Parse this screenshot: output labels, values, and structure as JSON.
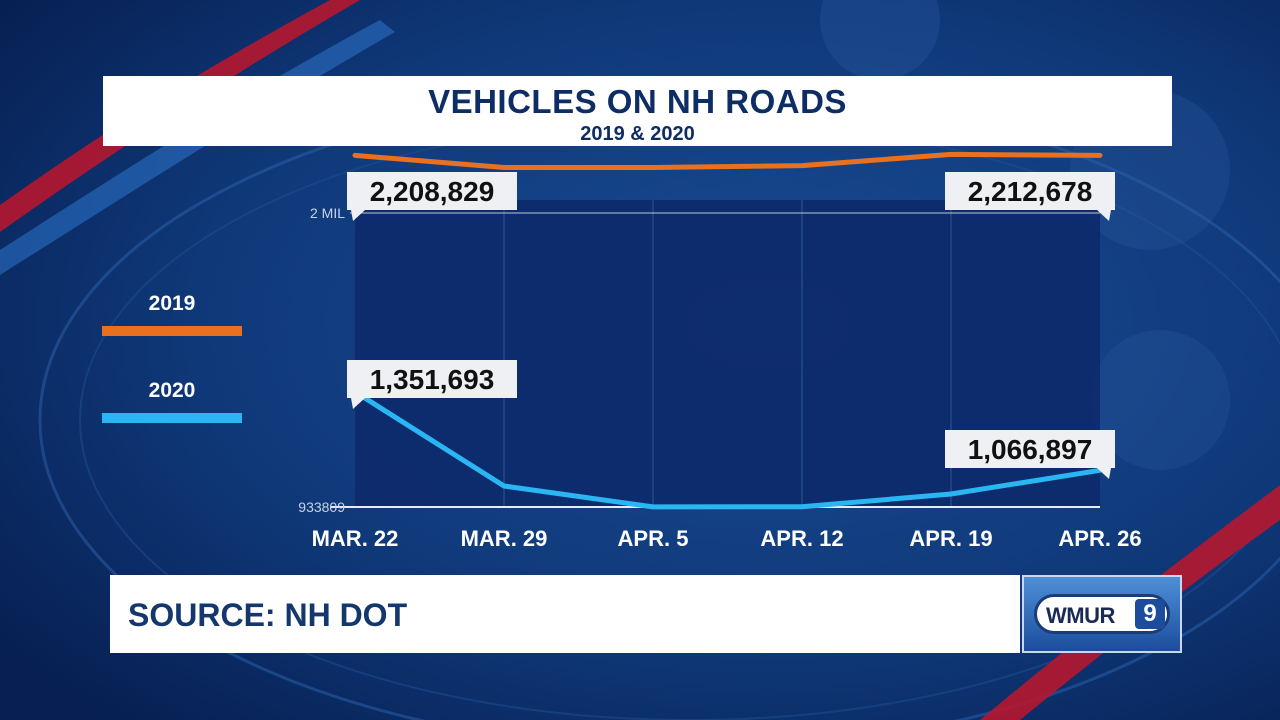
{
  "header": {
    "title": "VEHICLES ON NH ROADS",
    "subtitle": "2019 & 2020"
  },
  "footer": {
    "source": "SOURCE: NH DOT"
  },
  "logo": {
    "text": "WMUR",
    "numeral": "9"
  },
  "colors": {
    "series_2019": "#e8701e",
    "series_2020": "#29b6f2",
    "background": "#0a2f6e",
    "plot_area": "#0d2a6b",
    "title_text": "#0d2d64"
  },
  "chart_data": {
    "type": "line",
    "title": "VEHICLES ON NH ROADS",
    "subtitle": "2019 & 2020",
    "categories": [
      "MAR. 22",
      "MAR. 29",
      "APR. 5",
      "APR. 12",
      "APR. 19",
      "APR. 26"
    ],
    "y_tick_labels": [
      "2 MIL",
      "933809"
    ],
    "ylim": [
      933809,
      2000000
    ],
    "grid": "vertical",
    "legend": "left",
    "series": [
      {
        "name": "2019",
        "color": "#e8701e",
        "values": [
          2208829,
          2165000,
          2165000,
          2172000,
          2212678,
          2208829
        ],
        "labels": [
          {
            "index": 0,
            "text": "2,208,829"
          },
          {
            "index": 4,
            "text": "2,212,678"
          }
        ]
      },
      {
        "name": "2020",
        "color": "#29b6f2",
        "values": [
          1351693,
          1010000,
          934000,
          935000,
          981000,
          1066897
        ],
        "labels": [
          {
            "index": 0,
            "text": "1,351,693"
          },
          {
            "index": 5,
            "text": "1,066,897"
          }
        ]
      }
    ]
  }
}
